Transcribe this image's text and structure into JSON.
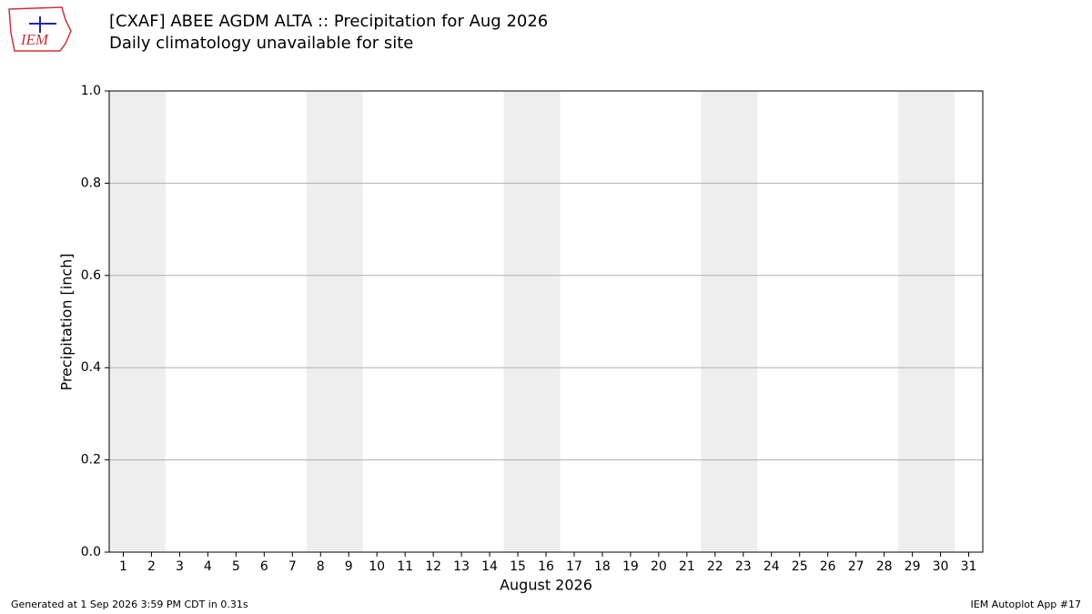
{
  "logo_text": "IEM",
  "footer_left": "Generated at 1 Sep 2026 3:59 PM CDT in 0.31s",
  "footer_right": "IEM Autoplot App #17",
  "chart_data": {
    "type": "bar",
    "title": "[CXAF] ABEE AGDM  ALTA :: Precipitation for Aug 2026",
    "subtitle": "Daily climatology unavailable for site",
    "x_label": "August 2026",
    "y_label": "Precipitation [inch]",
    "x": [
      1,
      2,
      3,
      4,
      5,
      6,
      7,
      8,
      9,
      10,
      11,
      12,
      13,
      14,
      15,
      16,
      17,
      18,
      19,
      20,
      21,
      22,
      23,
      24,
      25,
      26,
      27,
      28,
      29,
      30,
      31
    ],
    "values": [
      null,
      null,
      null,
      null,
      null,
      null,
      null,
      null,
      null,
      null,
      null,
      null,
      null,
      null,
      null,
      null,
      null,
      null,
      null,
      null,
      null,
      null,
      null,
      null,
      null,
      null,
      null,
      null,
      null,
      null,
      null
    ],
    "color": "#1f77b4",
    "weekend_spans": [
      [
        0.5,
        2.5
      ],
      [
        7.5,
        9.5
      ],
      [
        14.5,
        16.5
      ],
      [
        21.5,
        23.5
      ],
      [
        28.5,
        30.5
      ]
    ],
    "span_color": "#eeeeee",
    "xlim": [
      0.5,
      31.5
    ],
    "xticks": [
      1,
      2,
      3,
      4,
      5,
      6,
      7,
      8,
      9,
      10,
      11,
      12,
      13,
      14,
      15,
      16,
      17,
      18,
      19,
      20,
      21,
      22,
      23,
      24,
      25,
      26,
      27,
      28,
      29,
      30,
      31
    ],
    "ylim": [
      0,
      1
    ],
    "yticks": [
      {
        "value": 0,
        "label": "0.0"
      },
      0.2,
      0.4,
      0.6,
      0.8,
      {
        "value": 1,
        "label": "1.0"
      }
    ],
    "grid": true
  }
}
